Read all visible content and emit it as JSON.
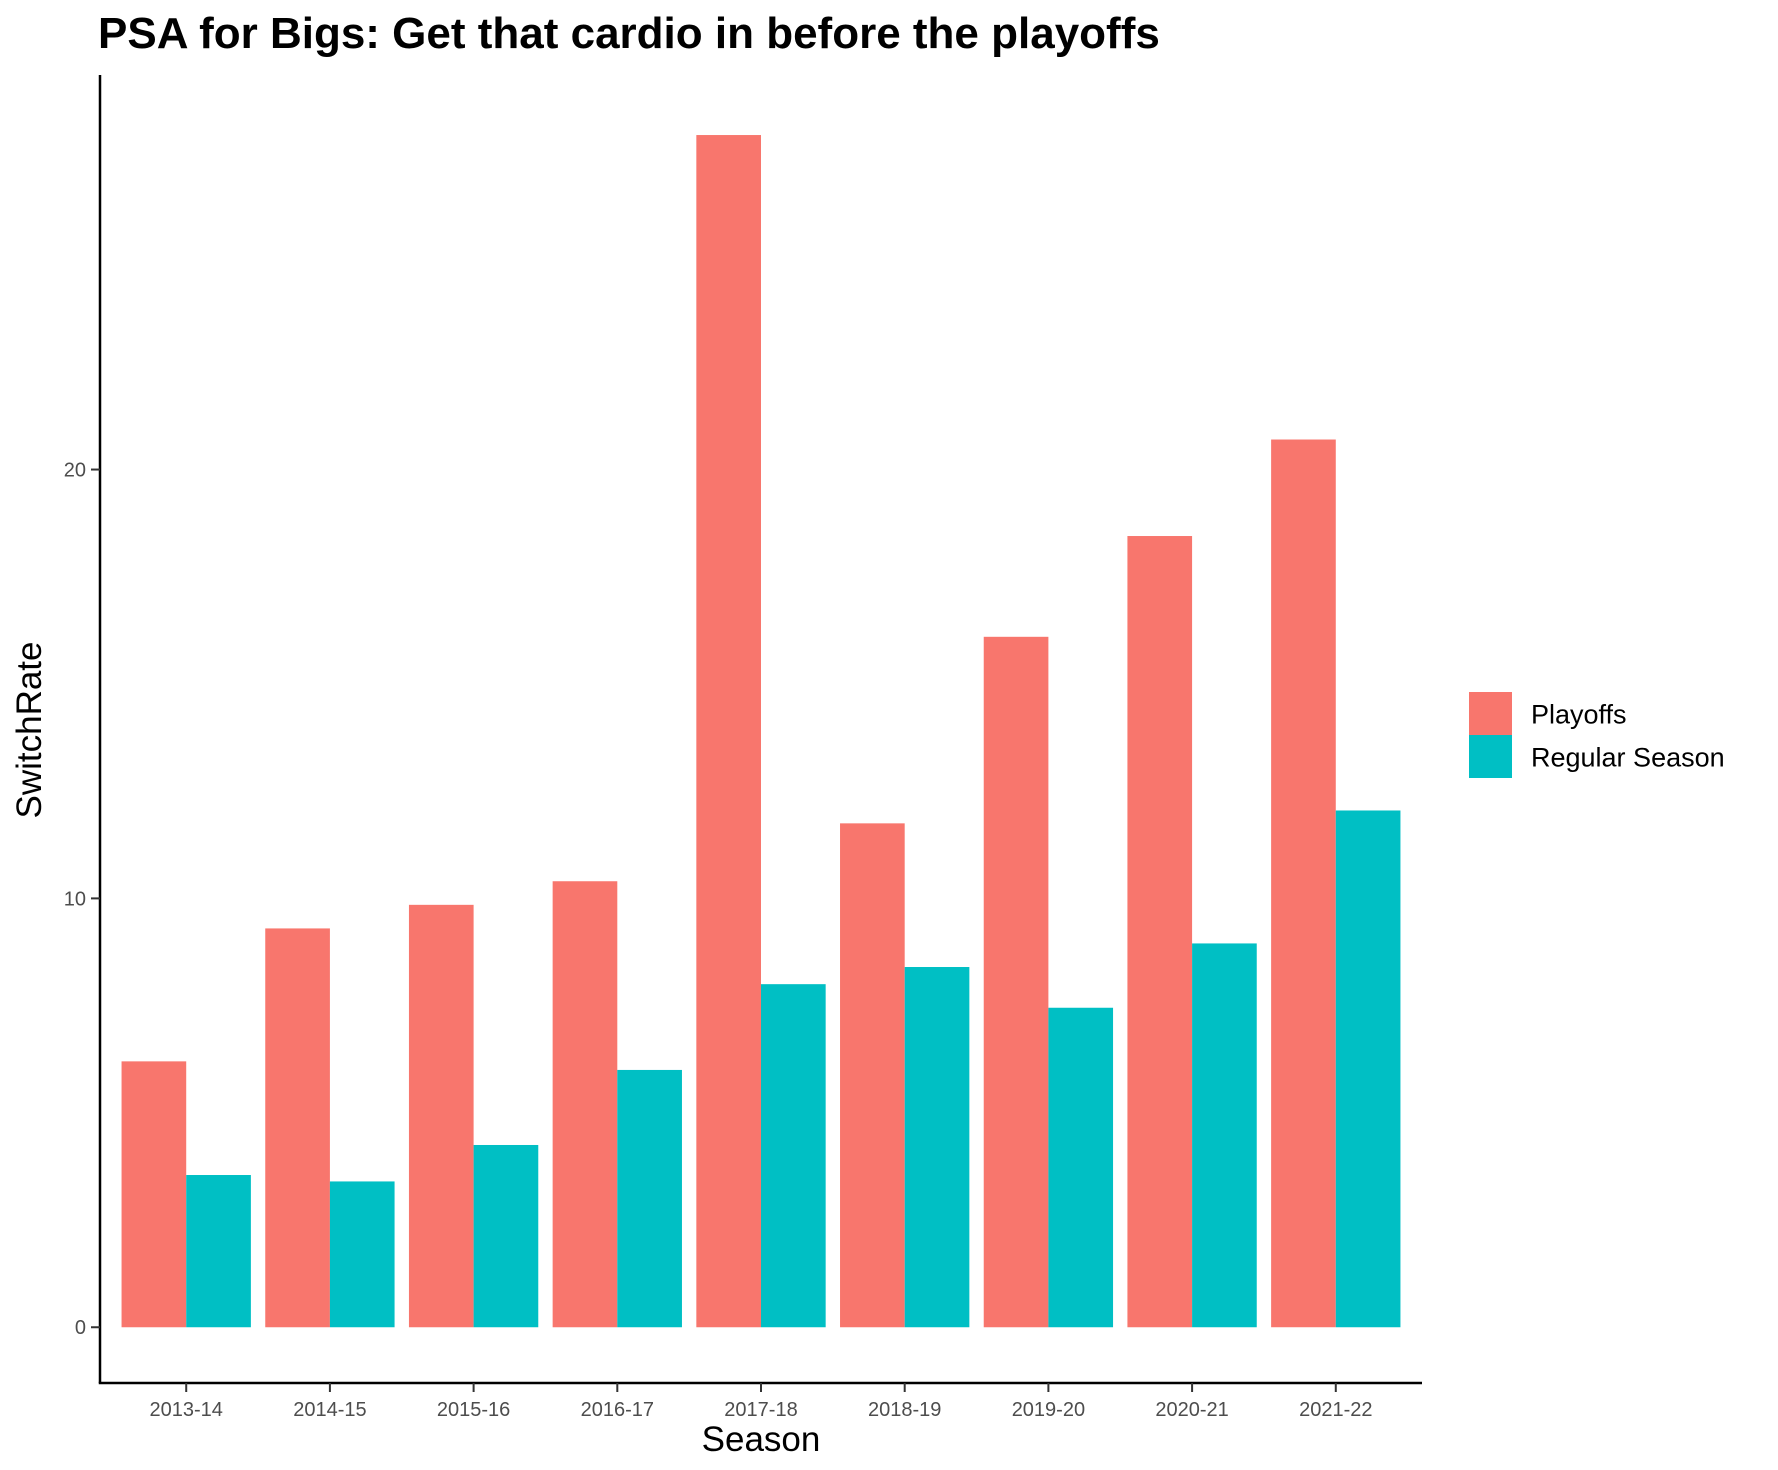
{
  "chart_data": {
    "type": "bar",
    "title": "PSA for Bigs: Get that cardio in before the playoffs",
    "xlabel": "Season",
    "ylabel": "SwitchRate",
    "categories": [
      "2013-14",
      "2014-15",
      "2015-16",
      "2016-17",
      "2017-18",
      "2018-19",
      "2019-20",
      "2020-21",
      "2021-22"
    ],
    "series": [
      {
        "name": "Playoffs",
        "color": "#F8766D",
        "values": [
          6.2,
          9.3,
          9.85,
          10.4,
          27.8,
          11.75,
          16.1,
          18.45,
          20.7
        ]
      },
      {
        "name": "Regular Season",
        "color": "#00BFC4",
        "values": [
          3.55,
          3.4,
          4.25,
          6.0,
          8.0,
          8.4,
          7.45,
          8.95,
          12.05
        ]
      }
    ],
    "ylim": [
      -1.3,
      29.2
    ],
    "yticks": [
      0,
      10,
      20
    ],
    "grid": false,
    "legend_position": "right"
  }
}
